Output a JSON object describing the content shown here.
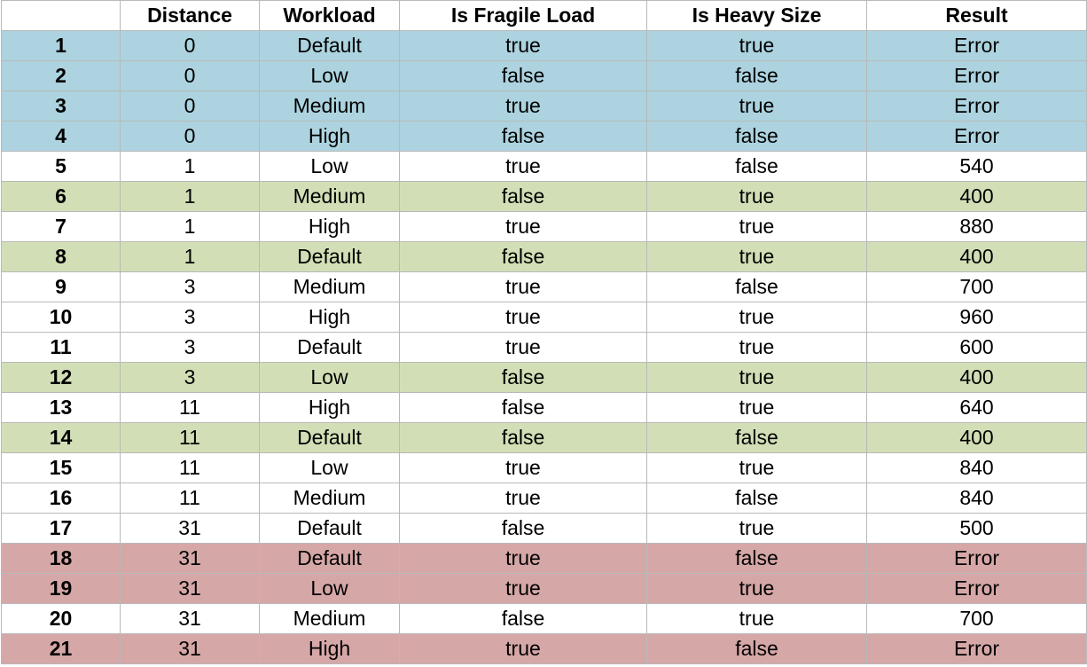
{
  "table": {
    "headers": [
      "",
      "Distance",
      "Workload",
      "Is Fragile Load",
      "Is Heavy Size",
      "Result"
    ],
    "rows": [
      {
        "id": "1",
        "distance": "0",
        "workload": "Default",
        "fragile": "true",
        "heavy": "true",
        "result": "Error",
        "color": "#acd3df"
      },
      {
        "id": "2",
        "distance": "0",
        "workload": "Low",
        "fragile": "false",
        "heavy": "false",
        "result": "Error",
        "color": "#acd3df"
      },
      {
        "id": "3",
        "distance": "0",
        "workload": "Medium",
        "fragile": "true",
        "heavy": "true",
        "result": "Error",
        "color": "#acd3df"
      },
      {
        "id": "4",
        "distance": "0",
        "workload": "High",
        "fragile": "false",
        "heavy": "false",
        "result": "Error",
        "color": "#acd3df"
      },
      {
        "id": "5",
        "distance": "1",
        "workload": "Low",
        "fragile": "true",
        "heavy": "false",
        "result": "540",
        "color": "#ffffff"
      },
      {
        "id": "6",
        "distance": "1",
        "workload": "Medium",
        "fragile": "false",
        "heavy": "true",
        "result": "400",
        "color": "#d2dfb6"
      },
      {
        "id": "7",
        "distance": "1",
        "workload": "High",
        "fragile": "true",
        "heavy": "true",
        "result": "880",
        "color": "#ffffff"
      },
      {
        "id": "8",
        "distance": "1",
        "workload": "Default",
        "fragile": "false",
        "heavy": "true",
        "result": "400",
        "color": "#d2dfb6"
      },
      {
        "id": "9",
        "distance": "3",
        "workload": "Medium",
        "fragile": "true",
        "heavy": "false",
        "result": "700",
        "color": "#ffffff"
      },
      {
        "id": "10",
        "distance": "3",
        "workload": "High",
        "fragile": "true",
        "heavy": "true",
        "result": "960",
        "color": "#ffffff"
      },
      {
        "id": "11",
        "distance": "3",
        "workload": "Default",
        "fragile": "true",
        "heavy": "true",
        "result": "600",
        "color": "#ffffff"
      },
      {
        "id": "12",
        "distance": "3",
        "workload": "Low",
        "fragile": "false",
        "heavy": "true",
        "result": "400",
        "color": "#d2dfb6"
      },
      {
        "id": "13",
        "distance": "11",
        "workload": "High",
        "fragile": "false",
        "heavy": "true",
        "result": "640",
        "color": "#ffffff"
      },
      {
        "id": "14",
        "distance": "11",
        "workload": "Default",
        "fragile": "false",
        "heavy": "false",
        "result": "400",
        "color": "#d2dfb6"
      },
      {
        "id": "15",
        "distance": "11",
        "workload": "Low",
        "fragile": "true",
        "heavy": "true",
        "result": "840",
        "color": "#ffffff"
      },
      {
        "id": "16",
        "distance": "11",
        "workload": "Medium",
        "fragile": "true",
        "heavy": "false",
        "result": "840",
        "color": "#ffffff"
      },
      {
        "id": "17",
        "distance": "31",
        "workload": "Default",
        "fragile": "false",
        "heavy": "true",
        "result": "500",
        "color": "#ffffff"
      },
      {
        "id": "18",
        "distance": "31",
        "workload": "Default",
        "fragile": "true",
        "heavy": "false",
        "result": "Error",
        "color": "#d6a7a7"
      },
      {
        "id": "19",
        "distance": "31",
        "workload": "Low",
        "fragile": "true",
        "heavy": "true",
        "result": "Error",
        "color": "#d6a7a7"
      },
      {
        "id": "20",
        "distance": "31",
        "workload": "Medium",
        "fragile": "false",
        "heavy": "true",
        "result": "700",
        "color": "#ffffff"
      },
      {
        "id": "21",
        "distance": "31",
        "workload": "High",
        "fragile": "true",
        "heavy": "false",
        "result": "Error",
        "color": "#d6a7a7"
      }
    ]
  }
}
